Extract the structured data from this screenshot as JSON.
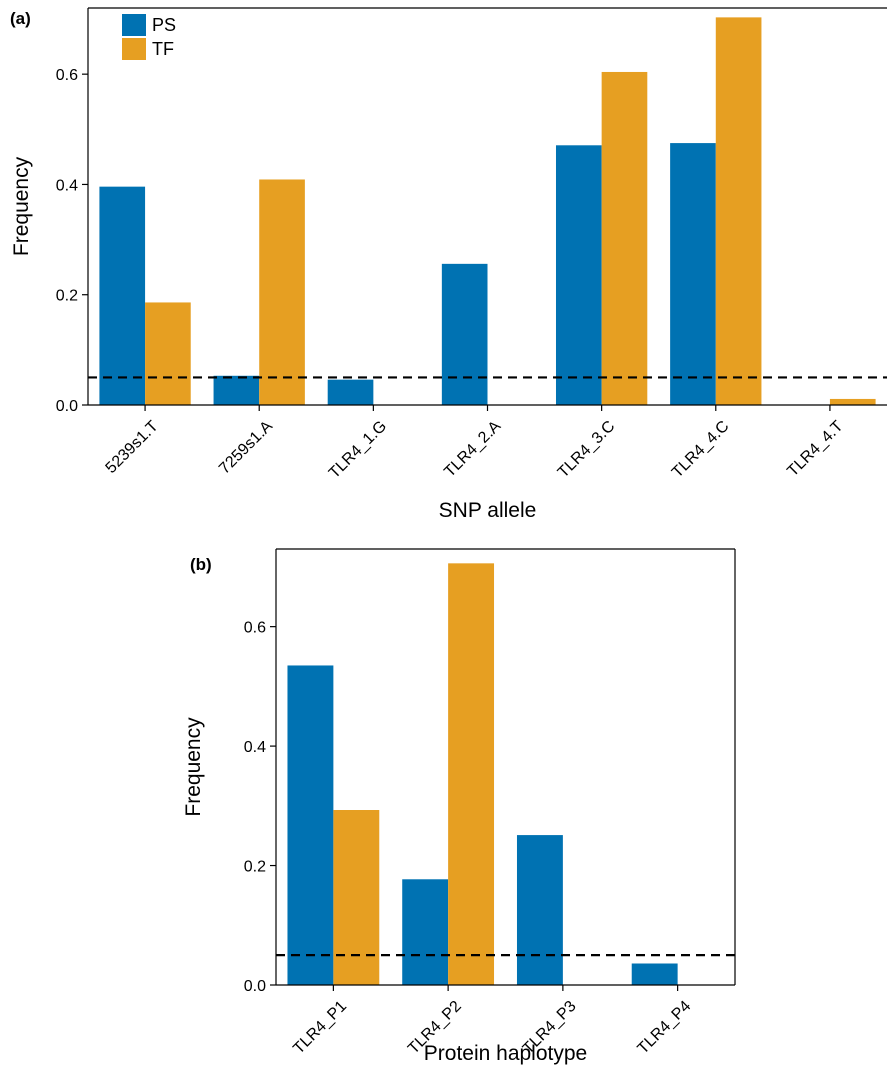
{
  "colors": {
    "PS": "#0072b2",
    "TF": "#e69f22",
    "threshold_line": "#000000"
  },
  "legend": {
    "items": [
      {
        "label": "PS",
        "color": "#0072b2"
      },
      {
        "label": "TF",
        "color": "#e69f22"
      }
    ],
    "placement": "top-left"
  },
  "chart_data": [
    {
      "type": "bar",
      "panel_label": "(a)",
      "categories": [
        "5239s1.T",
        "7259s1.A",
        "TLR4_1.G",
        "TLR4_2.A",
        "TLR4_3.C",
        "TLR4_4.C",
        "TLR4_4.T"
      ],
      "series": [
        {
          "name": "PS",
          "values": [
            0.396,
            0.053,
            0.046,
            0.256,
            0.471,
            0.475,
            0.0
          ]
        },
        {
          "name": "TF",
          "values": [
            0.186,
            0.409,
            0.0,
            0.0,
            0.604,
            0.703,
            0.011
          ]
        }
      ],
      "xlabel": "SNP allele",
      "ylabel": "Frequency",
      "ylim": [
        0,
        0.72
      ],
      "yticks": [
        "0.0",
        "0.2",
        "0.4",
        "0.6"
      ],
      "ytick_values": [
        0,
        0.2,
        0.4,
        0.6
      ],
      "threshold": 0.05,
      "grid": false,
      "legend": true
    },
    {
      "type": "bar",
      "panel_label": "(b)",
      "categories": [
        "TLR4_P1",
        "TLR4_P2",
        "TLR4_P3",
        "TLR4_P4"
      ],
      "series": [
        {
          "name": "PS",
          "values": [
            0.535,
            0.177,
            0.251,
            0.036
          ]
        },
        {
          "name": "TF",
          "values": [
            0.293,
            0.706,
            0.0,
            0.0
          ]
        }
      ],
      "xlabel": "Protein haplotype",
      "ylabel": "Frequency",
      "ylim": [
        0,
        0.73
      ],
      "yticks": [
        "0.0",
        "0.2",
        "0.4",
        "0.6"
      ],
      "ytick_values": [
        0,
        0.2,
        0.4,
        0.6
      ],
      "threshold": 0.05,
      "grid": false,
      "legend": false
    }
  ]
}
